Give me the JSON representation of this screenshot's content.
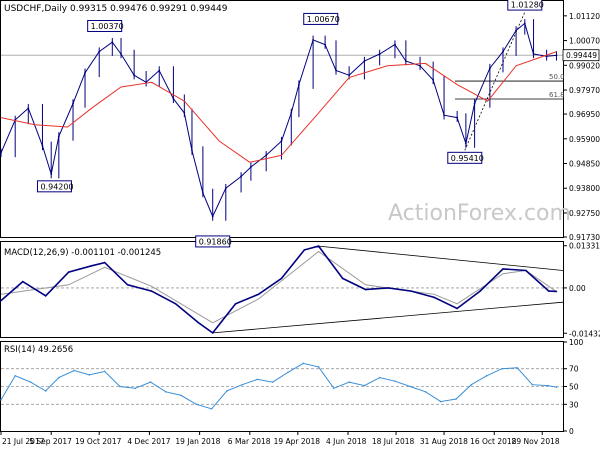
{
  "header": {
    "symbol": "USDCHF",
    "timeframe": "Daily",
    "quote": "0.99315 0.99476 0.99291 0.99449"
  },
  "watermark": "ActionForex.com",
  "chart_data": [
    {
      "type": "line",
      "panel": "price",
      "subtype": "ohlc-bar",
      "title": "USDCHF,Daily  0.99315 0.99476 0.99291 0.99449",
      "y_ticks": [
        "1.01120",
        "1.00070",
        "0.99020",
        "0.97970",
        "0.96950",
        "0.95900",
        "0.94850",
        "0.93800",
        "0.92750",
        "0.91730"
      ],
      "ylim": [
        0.9173,
        1.0175
      ],
      "last_price": "0.99449",
      "series": [
        {
          "name": "",
          "role": "close",
          "color": "#000080",
          "values": [
            {
              "x": "2017-07-21",
              "y": 0.953
            },
            {
              "x": "2017-08-03",
              "y": 0.967
            },
            {
              "x": "2017-08-15",
              "y": 0.972
            },
            {
              "x": "2017-08-28",
              "y": 0.956
            },
            {
              "x": "2017-09-05",
              "y": 0.944
            },
            {
              "x": "2017-09-12",
              "y": 0.96
            },
            {
              "x": "2017-09-25",
              "y": 0.974
            },
            {
              "x": "2017-10-06",
              "y": 0.987
            },
            {
              "x": "2017-10-19",
              "y": 0.996
            },
            {
              "x": "2017-10-31",
              "y": 1.0
            },
            {
              "x": "2017-11-08",
              "y": 0.995
            },
            {
              "x": "2017-11-20",
              "y": 0.986
            },
            {
              "x": "2017-12-01",
              "y": 0.983
            },
            {
              "x": "2017-12-13",
              "y": 0.988
            },
            {
              "x": "2017-12-26",
              "y": 0.976
            },
            {
              "x": "2018-01-05",
              "y": 0.97
            },
            {
              "x": "2018-01-12",
              "y": 0.954
            },
            {
              "x": "2018-01-22",
              "y": 0.936
            },
            {
              "x": "2018-01-31",
              "y": 0.926
            },
            {
              "x": "2018-02-12",
              "y": 0.938
            },
            {
              "x": "2018-02-26",
              "y": 0.943
            },
            {
              "x": "2018-03-07",
              "y": 0.947
            },
            {
              "x": "2018-03-21",
              "y": 0.952
            },
            {
              "x": "2018-04-04",
              "y": 0.958
            },
            {
              "x": "2018-04-13",
              "y": 0.97
            },
            {
              "x": "2018-04-20",
              "y": 0.982
            },
            {
              "x": "2018-05-03",
              "y": 1.001
            },
            {
              "x": "2018-05-14",
              "y": 0.999
            },
            {
              "x": "2018-05-24",
              "y": 0.988
            },
            {
              "x": "2018-06-05",
              "y": 0.986
            },
            {
              "x": "2018-06-19",
              "y": 0.992
            },
            {
              "x": "2018-07-03",
              "y": 0.995
            },
            {
              "x": "2018-07-17",
              "y": 0.999
            },
            {
              "x": "2018-07-27",
              "y": 0.992
            },
            {
              "x": "2018-08-09",
              "y": 0.99
            },
            {
              "x": "2018-08-21",
              "y": 0.984
            },
            {
              "x": "2018-08-31",
              "y": 0.969
            },
            {
              "x": "2018-09-12",
              "y": 0.968
            },
            {
              "x": "2018-09-20",
              "y": 0.957
            },
            {
              "x": "2018-09-28",
              "y": 0.974
            },
            {
              "x": "2018-10-12",
              "y": 0.989
            },
            {
              "x": "2018-10-24",
              "y": 0.996
            },
            {
              "x": "2018-11-05",
              "y": 1.005
            },
            {
              "x": "2018-11-13",
              "y": 1.008
            },
            {
              "x": "2018-11-21",
              "y": 0.995
            },
            {
              "x": "2018-12-03",
              "y": 0.994
            },
            {
              "x": "2018-12-12",
              "y": 0.9944
            }
          ]
        },
        {
          "name": "",
          "role": "moving-average",
          "color": "#e8312a",
          "values": [
            {
              "x": "2017-07-21",
              "y": 0.968
            },
            {
              "x": "2017-08-21",
              "y": 0.965
            },
            {
              "x": "2017-09-20",
              "y": 0.964
            },
            {
              "x": "2017-10-12",
              "y": 0.972
            },
            {
              "x": "2017-11-08",
              "y": 0.981
            },
            {
              "x": "2017-12-06",
              "y": 0.983
            },
            {
              "x": "2018-01-05",
              "y": 0.975
            },
            {
              "x": "2018-02-06",
              "y": 0.958
            },
            {
              "x": "2018-03-06",
              "y": 0.949
            },
            {
              "x": "2018-04-04",
              "y": 0.952
            },
            {
              "x": "2018-05-08",
              "y": 0.97
            },
            {
              "x": "2018-06-05",
              "y": 0.985
            },
            {
              "x": "2018-07-10",
              "y": 0.99
            },
            {
              "x": "2018-08-14",
              "y": 0.991
            },
            {
              "x": "2018-09-12",
              "y": 0.982
            },
            {
              "x": "2018-10-10",
              "y": 0.975
            },
            {
              "x": "2018-11-05",
              "y": 0.99
            },
            {
              "x": "2018-12-12",
              "y": 0.996
            }
          ]
        }
      ],
      "swing_labels": [
        {
          "text": "0.94200",
          "x": "2017-09-08",
          "y": 0.942
        },
        {
          "text": "1.00370",
          "x": "2017-10-24",
          "y": 1.0037
        },
        {
          "text": "0.91860",
          "x": "2018-01-31",
          "y": 0.9186
        },
        {
          "text": "1.00670",
          "x": "2018-05-10",
          "y": 1.0067
        },
        {
          "text": "0.95410",
          "x": "2018-09-19",
          "y": 0.9541
        },
        {
          "text": "1.01280",
          "x": "2018-11-13",
          "y": 1.0128
        }
      ],
      "fibonacci": [
        {
          "label": "50.0",
          "value": 0.9835
        },
        {
          "label": "61.8",
          "value": 0.9759
        }
      ],
      "trendline": {
        "from": {
          "x": "2018-09-19",
          "y": 0.9541
        },
        "to": {
          "x": "2018-11-13",
          "y": 1.0128
        }
      }
    },
    {
      "type": "line",
      "panel": "macd",
      "title": "MACD(12,26,9) -0.001101 -0.001245",
      "y_ticks": [
        "0.013319",
        "0.00",
        "-0.014323"
      ],
      "ylim": [
        -0.0155,
        0.0145
      ],
      "series": [
        {
          "name": "",
          "role": "macd",
          "color": "#000080",
          "values": [
            {
              "x": "2017-07-21",
              "y": -0.004
            },
            {
              "x": "2017-08-10",
              "y": 0.002
            },
            {
              "x": "2017-08-31",
              "y": -0.0025
            },
            {
              "x": "2017-09-21",
              "y": 0.005
            },
            {
              "x": "2017-10-12",
              "y": 0.007
            },
            {
              "x": "2017-10-24",
              "y": 0.008
            },
            {
              "x": "2017-11-14",
              "y": 0.001
            },
            {
              "x": "2017-12-06",
              "y": -0.001
            },
            {
              "x": "2017-12-28",
              "y": -0.005
            },
            {
              "x": "2018-01-18",
              "y": -0.011
            },
            {
              "x": "2018-01-31",
              "y": -0.0142
            },
            {
              "x": "2018-02-21",
              "y": -0.005
            },
            {
              "x": "2018-03-14",
              "y": -0.002
            },
            {
              "x": "2018-04-04",
              "y": 0.003
            },
            {
              "x": "2018-04-25",
              "y": 0.012
            },
            {
              "x": "2018-05-08",
              "y": 0.0132
            },
            {
              "x": "2018-05-30",
              "y": 0.003
            },
            {
              "x": "2018-06-20",
              "y": -0.0005
            },
            {
              "x": "2018-07-11",
              "y": 0.0
            },
            {
              "x": "2018-08-01",
              "y": -0.001
            },
            {
              "x": "2018-08-22",
              "y": -0.003
            },
            {
              "x": "2018-09-12",
              "y": -0.0065
            },
            {
              "x": "2018-10-03",
              "y": -0.001
            },
            {
              "x": "2018-10-24",
              "y": 0.006
            },
            {
              "x": "2018-11-14",
              "y": 0.0055
            },
            {
              "x": "2018-12-05",
              "y": -0.001
            },
            {
              "x": "2018-12-12",
              "y": -0.0011
            }
          ]
        },
        {
          "name": "",
          "role": "signal",
          "color": "#9a9a9a",
          "values": [
            {
              "x": "2017-07-21",
              "y": -0.002
            },
            {
              "x": "2017-09-21",
              "y": 0.001
            },
            {
              "x": "2017-10-24",
              "y": 0.0065
            },
            {
              "x": "2017-12-06",
              "y": 0.0005
            },
            {
              "x": "2018-01-31",
              "y": -0.011
            },
            {
              "x": "2018-03-14",
              "y": -0.0035
            },
            {
              "x": "2018-05-08",
              "y": 0.0115
            },
            {
              "x": "2018-06-20",
              "y": 0.001
            },
            {
              "x": "2018-08-22",
              "y": -0.002
            },
            {
              "x": "2018-09-12",
              "y": -0.005
            },
            {
              "x": "2018-10-24",
              "y": 0.0045
            },
            {
              "x": "2018-11-14",
              "y": 0.0055
            },
            {
              "x": "2018-12-12",
              "y": -0.0012
            }
          ]
        }
      ],
      "trendlines": [
        {
          "from": {
            "x": "2018-05-08",
            "y": 0.0132
          },
          "to": {
            "x": "2018-12-18",
            "y": 0.0055
          }
        },
        {
          "from": {
            "x": "2018-01-31",
            "y": -0.0142
          },
          "to": {
            "x": "2018-12-18",
            "y": -0.0045
          }
        }
      ]
    },
    {
      "type": "line",
      "panel": "rsi",
      "title": "RSI(14) 49.2656",
      "y_ticks": [
        "100",
        "70",
        "50",
        "30",
        "0"
      ],
      "ylim": [
        0,
        100
      ],
      "series": [
        {
          "name": "",
          "role": "rsi",
          "color": "#3a8fd8",
          "values": [
            {
              "x": "2017-07-21",
              "y": 35
            },
            {
              "x": "2017-08-03",
              "y": 62
            },
            {
              "x": "2017-08-17",
              "y": 55
            },
            {
              "x": "2017-08-31",
              "y": 45
            },
            {
              "x": "2017-09-12",
              "y": 60
            },
            {
              "x": "2017-09-26",
              "y": 68
            },
            {
              "x": "2017-10-10",
              "y": 63
            },
            {
              "x": "2017-10-24",
              "y": 67
            },
            {
              "x": "2017-11-07",
              "y": 50
            },
            {
              "x": "2017-11-21",
              "y": 48
            },
            {
              "x": "2017-12-05",
              "y": 55
            },
            {
              "x": "2017-12-19",
              "y": 44
            },
            {
              "x": "2018-01-02",
              "y": 40
            },
            {
              "x": "2018-01-16",
              "y": 30
            },
            {
              "x": "2018-01-30",
              "y": 25
            },
            {
              "x": "2018-02-13",
              "y": 45
            },
            {
              "x": "2018-02-27",
              "y": 52
            },
            {
              "x": "2018-03-13",
              "y": 58
            },
            {
              "x": "2018-03-27",
              "y": 55
            },
            {
              "x": "2018-04-10",
              "y": 66
            },
            {
              "x": "2018-04-24",
              "y": 76
            },
            {
              "x": "2018-05-08",
              "y": 72
            },
            {
              "x": "2018-05-22",
              "y": 48
            },
            {
              "x": "2018-06-05",
              "y": 55
            },
            {
              "x": "2018-06-19",
              "y": 51
            },
            {
              "x": "2018-07-03",
              "y": 60
            },
            {
              "x": "2018-07-17",
              "y": 56
            },
            {
              "x": "2018-07-31",
              "y": 50
            },
            {
              "x": "2018-08-14",
              "y": 44
            },
            {
              "x": "2018-08-28",
              "y": 33
            },
            {
              "x": "2018-09-11",
              "y": 36
            },
            {
              "x": "2018-09-25",
              "y": 52
            },
            {
              "x": "2018-10-09",
              "y": 62
            },
            {
              "x": "2018-10-23",
              "y": 70
            },
            {
              "x": "2018-11-06",
              "y": 71
            },
            {
              "x": "2018-11-20",
              "y": 52
            },
            {
              "x": "2018-12-04",
              "y": 51
            },
            {
              "x": "2018-12-12",
              "y": 49.27
            }
          ]
        }
      ],
      "levels": [
        70,
        50,
        30
      ]
    }
  ],
  "x_axis": {
    "labels": [
      "21 Jul 2017",
      "5 Sep 2017",
      "19 Oct 2017",
      "4 Dec 2017",
      "19 Jan 2018",
      "6 Mar 2018",
      "19 Apr 2018",
      "4 Jun 2018",
      "18 Jul 2018",
      "31 Aug 2018",
      "16 Oct 2018",
      "29 Nov 2018"
    ],
    "dates": [
      "2017-07-21",
      "2017-09-05",
      "2017-10-19",
      "2017-12-04",
      "2018-01-19",
      "2018-03-06",
      "2018-04-19",
      "2018-06-04",
      "2018-07-18",
      "2018-08-31",
      "2018-10-16",
      "2018-11-29"
    ],
    "range": [
      "2017-07-21",
      "2018-12-18"
    ]
  },
  "colors": {
    "price": "#000080",
    "moving_average": "#e8312a",
    "signal": "#9a9a9a",
    "rsi": "#3a8fd8",
    "label_fill": "#ffffff",
    "label_border": "#000080",
    "watermark": "#c8c8c8"
  }
}
